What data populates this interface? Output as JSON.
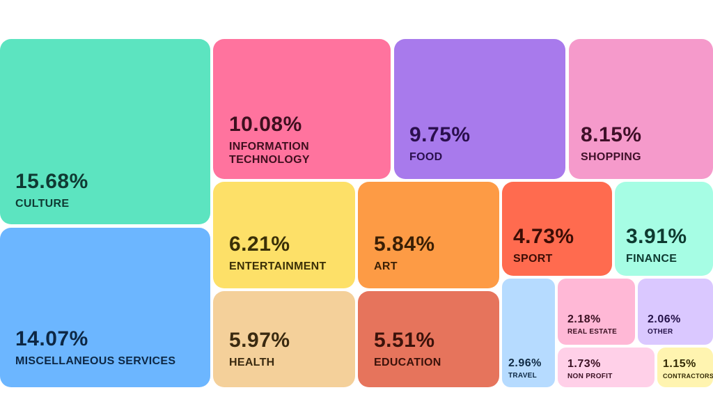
{
  "chart_data": {
    "type": "treemap",
    "items": [
      {
        "id": "culture",
        "label": "CULTURE",
        "value": 15.68,
        "value_text": "15.68%",
        "color": "#5ce4c0",
        "text_color": "#0f3a33"
      },
      {
        "id": "misc",
        "label": "MISCELLANEOUS SERVICES",
        "value": 14.07,
        "value_text": "14.07%",
        "color": "#6cb6ff",
        "text_color": "#0d2744"
      },
      {
        "id": "it",
        "label": "INFORMATION TECHNOLOGY",
        "value": 10.08,
        "value_text": "10.08%",
        "color": "#ff739e",
        "text_color": "#3e0f1e"
      },
      {
        "id": "food",
        "label": "FOOD",
        "value": 9.75,
        "value_text": "9.75%",
        "color": "#a87aec",
        "text_color": "#2a0f4d"
      },
      {
        "id": "shopping",
        "label": "SHOPPING",
        "value": 8.15,
        "value_text": "8.15%",
        "color": "#f59acb",
        "text_color": "#3f1029"
      },
      {
        "id": "entertainment",
        "label": "ENTERTAINMENT",
        "value": 6.21,
        "value_text": "6.21%",
        "color": "#fde068",
        "text_color": "#3a2f07"
      },
      {
        "id": "health",
        "label": "HEALTH",
        "value": 5.97,
        "value_text": "5.97%",
        "color": "#f4d09a",
        "text_color": "#3a2a10"
      },
      {
        "id": "art",
        "label": "ART",
        "value": 5.84,
        "value_text": "5.84%",
        "color": "#fd9b45",
        "text_color": "#3a1f05"
      },
      {
        "id": "education",
        "label": "EDUCATION",
        "value": 5.51,
        "value_text": "5.51%",
        "color": "#e6745c",
        "text_color": "#3b120a"
      },
      {
        "id": "sport",
        "label": "SPORT",
        "value": 4.73,
        "value_text": "4.73%",
        "color": "#ff6b4f",
        "text_color": "#3c0d05"
      },
      {
        "id": "finance",
        "label": "FINANCE",
        "value": 3.91,
        "value_text": "3.91%",
        "color": "#a6fde4",
        "text_color": "#0e3a30"
      },
      {
        "id": "travel",
        "label": "TRAVEL",
        "value": 2.96,
        "value_text": "2.96%",
        "color": "#b6dbff",
        "text_color": "#0f2a44"
      },
      {
        "id": "real_estate",
        "label": "REAL ESTATE",
        "value": 2.18,
        "value_text": "2.18%",
        "color": "#ffb8d6",
        "text_color": "#3a1022"
      },
      {
        "id": "other",
        "label": "OTHER",
        "value": 2.06,
        "value_text": "2.06%",
        "color": "#dac8ff",
        "text_color": "#241249"
      },
      {
        "id": "non_profit",
        "label": "NON PROFIT",
        "value": 1.73,
        "value_text": "1.73%",
        "color": "#ffd0e8",
        "text_color": "#3a1022"
      },
      {
        "id": "contractors",
        "label": "CONTRACTORS",
        "value": 1.15,
        "value_text": "1.15%",
        "color": "#fff4b0",
        "text_color": "#332a05"
      }
    ]
  }
}
